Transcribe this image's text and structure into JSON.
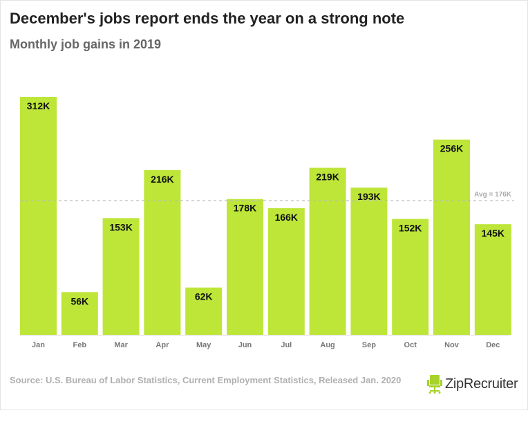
{
  "title": "December's jobs report ends the year on a strong note",
  "subtitle": "Monthly job gains in 2019",
  "source": "Source: U.S. Bureau of Labor Statistics, Current Employment Statistics, Released Jan. 2020",
  "logo": {
    "text": "ZipRecruiter",
    "icon": "office-chair-icon"
  },
  "colors": {
    "bar": "#bde639",
    "avg_line": "#bbbbbb",
    "label": "#111111"
  },
  "chart_data": {
    "type": "bar",
    "title": "December's jobs report ends the year on a strong note",
    "subtitle": "Monthly job gains in 2019",
    "categories": [
      "Jan",
      "Feb",
      "Mar",
      "Apr",
      "May",
      "Jun",
      "Jul",
      "Aug",
      "Sep",
      "Oct",
      "Nov",
      "Dec"
    ],
    "values": [
      312,
      56,
      153,
      216,
      62,
      178,
      166,
      219,
      193,
      152,
      256,
      145
    ],
    "data_labels": [
      "312K",
      "56K",
      "153K",
      "216K",
      "62K",
      "178K",
      "166K",
      "219K",
      "193K",
      "152K",
      "256K",
      "145K"
    ],
    "unit": "thousands of jobs",
    "ylim": [
      0,
      312
    ],
    "grid": false,
    "legend": "none",
    "reference_line": {
      "value": 176,
      "label": "Avg = 176K"
    }
  }
}
